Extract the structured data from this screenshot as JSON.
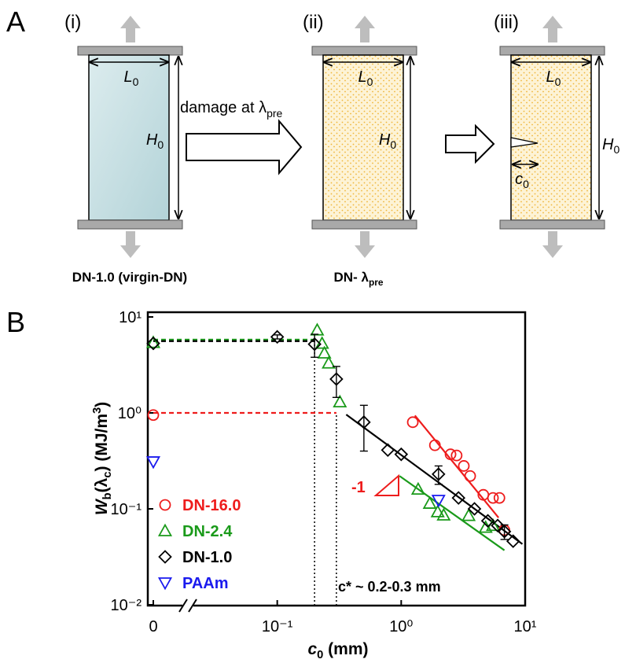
{
  "panel_a": {
    "label": "A",
    "stages": [
      {
        "label": "(i)",
        "width": [
          "L",
          "0"
        ],
        "height": [
          "H",
          "0"
        ],
        "caption": "DN-1.0 (virgin-DN)"
      },
      {
        "label": "(ii)",
        "width": [
          "L",
          "0"
        ],
        "height": [
          "H",
          "0"
        ],
        "caption": [
          "DN- λ",
          "pre"
        ]
      },
      {
        "label": "(iii)",
        "width": [
          "L",
          "0"
        ],
        "height": [
          "H",
          "0"
        ],
        "crack": [
          "c",
          "0"
        ]
      }
    ],
    "arrow_label": [
      "damage at λ",
      "pre"
    ]
  },
  "chart_data": {
    "type": "scatter",
    "panel_label": "B",
    "xlabel": [
      "c",
      "0",
      " (mm)"
    ],
    "ylabel": [
      "W",
      "b",
      "(λ",
      "c",
      ") (MJ/m",
      "3",
      ")"
    ],
    "xscale": "log",
    "yscale": "log",
    "xlim": [
      0.01,
      10
    ],
    "ylim": [
      0.01,
      10
    ],
    "xticks": [
      0,
      {
        "value": 0.1,
        "label": "10⁻¹"
      },
      {
        "value": 1,
        "label": "10⁰"
      },
      {
        "value": 10,
        "label": "10¹"
      }
    ],
    "yticks": [
      {
        "value": 0.01,
        "label": "10⁻²"
      },
      {
        "value": 0.1,
        "label": "10⁻¹"
      },
      {
        "value": 1,
        "label": "10⁰"
      },
      {
        "value": 10,
        "label": "10¹"
      }
    ],
    "legend": "lower left",
    "series": [
      {
        "name": "DN-16.0",
        "color": "#ee1c1c",
        "marker": "circle",
        "x": [
          0,
          1.24,
          1.87,
          2.5,
          2.8,
          3.2,
          3.6,
          4.6,
          5.5,
          6.2,
          6.8
        ],
        "y": [
          0.95,
          0.8,
          0.46,
          0.37,
          0.36,
          0.28,
          0.22,
          0.14,
          0.13,
          0.13,
          0.06
        ],
        "fit_x": [
          1.29,
          6.1
        ],
        "fit_y": [
          0.94,
          0.081
        ],
        "plateau_x": [
          0,
          0.3
        ],
        "plateau_y": [
          1.0,
          1.0
        ]
      },
      {
        "name": "DN-2.4",
        "color": "#1a9a1a",
        "marker": "triangle",
        "x": [
          0,
          0.21,
          0.23,
          0.24,
          0.26,
          0.32,
          1.37,
          1.7,
          1.97,
          2.2,
          3.5,
          4.8,
          5.5
        ],
        "y": [
          5.4,
          7.3,
          5.3,
          4.2,
          3.3,
          1.3,
          0.16,
          0.114,
          0.093,
          0.086,
          0.085,
          0.064,
          0.067
        ],
        "fit_x": [
          0.97,
          6.8
        ],
        "fit_y": [
          0.22,
          0.037
        ],
        "plateau_x": [
          0,
          0.2
        ],
        "plateau_y": [
          5.8,
          5.8
        ]
      },
      {
        "name": "DN-1.0",
        "color": "#000000",
        "marker": "diamond",
        "x": [
          0,
          0.1,
          0.2,
          0.3,
          0.5,
          0.78,
          1.0,
          2.0,
          2.9,
          3.9,
          5.0,
          6.0,
          6.8,
          8.0
        ],
        "y": [
          5.3,
          6.2,
          5.2,
          2.25,
          0.8,
          0.41,
          0.37,
          0.23,
          0.13,
          0.1,
          0.075,
          0.067,
          0.058,
          0.046
        ],
        "errors": [
          null,
          0.3,
          1.4,
          0.8,
          0.4,
          null,
          null,
          0.05,
          null,
          null,
          null,
          null,
          0.01,
          null
        ],
        "fit_x": [
          0.36,
          9.5
        ],
        "fit_y": [
          0.96,
          0.043
        ],
        "plateau_x": [
          0,
          0.2
        ],
        "plateau_y": [
          5.6,
          5.6
        ]
      },
      {
        "name": "PAAm",
        "color": "#1a1aee",
        "marker": "triangle-down",
        "x": [
          0,
          2.0
        ],
        "y": [
          0.31,
          0.123
        ]
      }
    ],
    "ref_x": [
      0.2,
      0.3
    ],
    "annotations": {
      "critical": "c* ~ 0.2-0.3 mm",
      "slope": "-1"
    }
  }
}
